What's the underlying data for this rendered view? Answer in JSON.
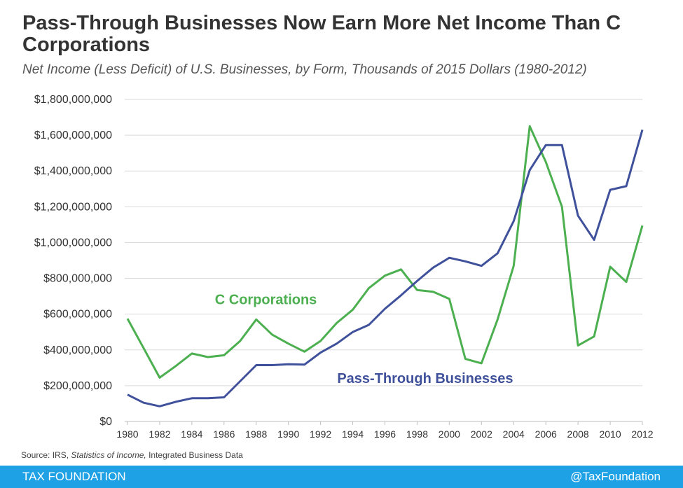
{
  "header": {
    "title": "Pass-Through Businesses Now Earn More Net Income Than C Corporations",
    "subtitle": "Net Income (Less Deficit) of U.S. Businesses, by Form, Thousands  of 2015 Dollars (1980-2012)"
  },
  "chart_data": {
    "type": "line",
    "x": [
      1980,
      1981,
      1982,
      1983,
      1984,
      1985,
      1986,
      1987,
      1988,
      1989,
      1990,
      1991,
      1992,
      1993,
      1994,
      1995,
      1996,
      1997,
      1998,
      1999,
      2000,
      2001,
      2002,
      2003,
      2004,
      2005,
      2006,
      2007,
      2008,
      2009,
      2010,
      2011,
      2012
    ],
    "series": [
      {
        "name": "C Corporations",
        "color": "#4caf50",
        "values": [
          575000000,
          410000000,
          245000000,
          310000000,
          380000000,
          360000000,
          370000000,
          450000000,
          570000000,
          485000000,
          435000000,
          390000000,
          450000000,
          550000000,
          625000000,
          745000000,
          815000000,
          850000000,
          735000000,
          725000000,
          685000000,
          350000000,
          325000000,
          570000000,
          870000000,
          1650000000,
          1450000000,
          1200000000,
          425000000,
          475000000,
          865000000,
          780000000,
          1095000000
        ]
      },
      {
        "name": "Pass-Through Businesses",
        "color": "#40519c",
        "values": [
          150000000,
          105000000,
          85000000,
          110000000,
          130000000,
          130000000,
          135000000,
          225000000,
          315000000,
          315000000,
          320000000,
          318000000,
          385000000,
          435000000,
          500000000,
          540000000,
          630000000,
          705000000,
          785000000,
          860000000,
          915000000,
          895000000,
          870000000,
          940000000,
          1120000000,
          1405000000,
          1545000000,
          1545000000,
          1150000000,
          1015000000,
          1295000000,
          1315000000,
          1630000000
        ]
      }
    ],
    "ylim": [
      0,
      1800000000
    ],
    "y_ticks": [
      "$0",
      "$200,000,000",
      "$400,000,000",
      "$600,000,000",
      "$800,000,000",
      "$1,000,000,000",
      "$1,200,000,000",
      "$1,400,000,000",
      "$1,600,000,000",
      "$1,800,000,000"
    ],
    "x_ticks": [
      "1980",
      "1982",
      "1984",
      "1986",
      "1988",
      "1990",
      "1992",
      "1994",
      "1996",
      "1998",
      "2000",
      "2002",
      "2004",
      "2006",
      "2008",
      "2010",
      "2012"
    ],
    "grid": true,
    "legend": "inline-labels"
  },
  "source": {
    "prefix": "Source: IRS,",
    "italic": "Statistics of Income,",
    "suffix": "Integrated Business Data"
  },
  "footer": {
    "brand": "TAX FOUNDATION",
    "handle": "@TaxFoundation",
    "color": "#1fa1e6"
  }
}
